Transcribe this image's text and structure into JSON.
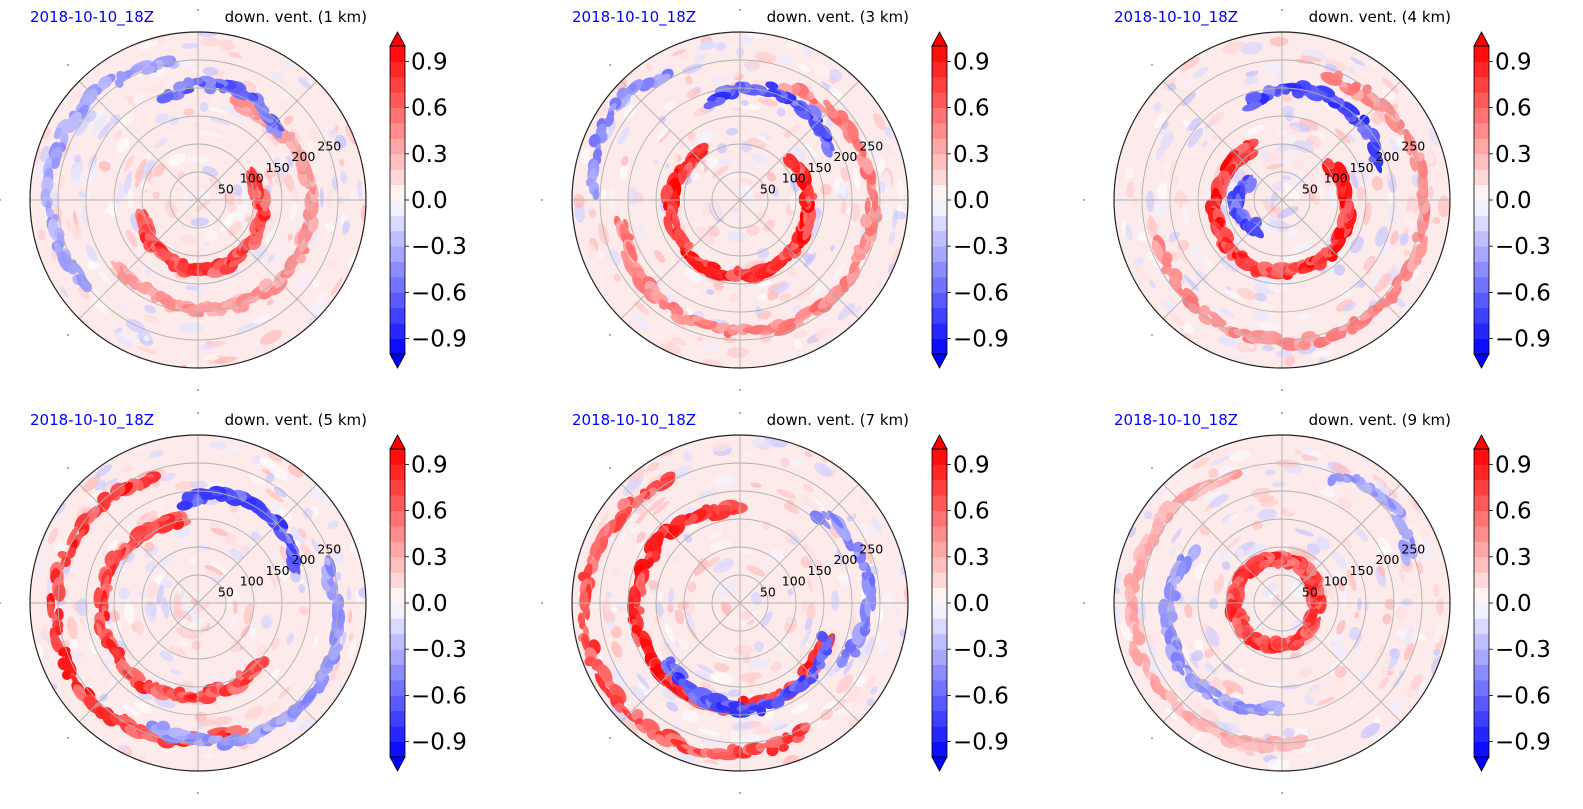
{
  "chart_data": [
    {
      "type": "heatmap",
      "projection": "polar",
      "date_label": "2018-10-10_18Z",
      "title": "down. vent. (1 km)",
      "radial_ticks": [
        "50",
        "100",
        "150",
        "200",
        "250"
      ],
      "colorbar": {
        "ticks": [
          "0.9",
          "0.6",
          "0.3",
          "0.0",
          "−0.3",
          "−0.6",
          "−0.9"
        ],
        "tick_values": [
          0.9,
          0.6,
          0.3,
          0.0,
          -0.3,
          -0.6,
          -0.9
        ],
        "range": [
          -1.0,
          1.0
        ],
        "extend": "both",
        "colormap": "bwr"
      },
      "rings": [
        {
          "start": 195,
          "span": 190,
          "r": 0.34,
          "sign": 1,
          "amp": 0.9
        },
        {
          "start": 220,
          "span": 210,
          "r": 0.6,
          "sign": 1,
          "amp": 0.5
        },
        {
          "start": 40,
          "span": 70,
          "r": 0.62,
          "sign": -1,
          "amp": 0.75
        },
        {
          "start": 100,
          "span": 120,
          "r": 0.82,
          "sign": -1,
          "amp": 0.45
        }
      ]
    },
    {
      "type": "heatmap",
      "projection": "polar",
      "date_label": "2018-10-10_18Z",
      "title": "down. vent. (3 km)",
      "radial_ticks": [
        "50",
        "100",
        "150",
        "200",
        "250"
      ],
      "colorbar": {
        "ticks": [
          "0.9",
          "0.6",
          "0.3",
          "0.0",
          "−0.3",
          "−0.6",
          "−0.9"
        ],
        "tick_values": [
          0.9,
          0.6,
          0.3,
          0.0,
          -0.3,
          -0.6,
          -0.9
        ],
        "range": [
          -1.0,
          1.0
        ],
        "extend": "both",
        "colormap": "bwr"
      },
      "rings": [
        {
          "start": 130,
          "span": 270,
          "r": 0.37,
          "sign": 1,
          "amp": 1.0
        },
        {
          "start": 190,
          "span": 240,
          "r": 0.72,
          "sign": 1,
          "amp": 0.6
        },
        {
          "start": 30,
          "span": 80,
          "r": 0.6,
          "sign": -1,
          "amp": 0.85
        },
        {
          "start": 120,
          "span": 60,
          "r": 0.85,
          "sign": -1,
          "amp": 0.55
        }
      ]
    },
    {
      "type": "heatmap",
      "projection": "polar",
      "date_label": "2018-10-10_18Z",
      "title": "down. vent. (4 km)",
      "radial_ticks": [
        "50",
        "100",
        "150",
        "200",
        "250"
      ],
      "colorbar": {
        "ticks": [
          "0.9",
          "0.6",
          "0.3",
          "0.0",
          "−0.3",
          "−0.6",
          "−0.9"
        ],
        "tick_values": [
          0.9,
          0.6,
          0.3,
          0.0,
          -0.3,
          -0.6,
          -0.9
        ],
        "range": [
          -1.0,
          1.0
        ],
        "extend": "both",
        "colormap": "bwr"
      },
      "rings": [
        {
          "start": 120,
          "span": 280,
          "r": 0.35,
          "sign": 1,
          "amp": 1.0
        },
        {
          "start": 200,
          "span": 230,
          "r": 0.78,
          "sign": 1,
          "amp": 0.55
        },
        {
          "start": 20,
          "span": 90,
          "r": 0.6,
          "sign": -1,
          "amp": 0.85
        },
        {
          "start": 150,
          "span": 80,
          "r": 0.2,
          "sign": -1,
          "amp": 0.8
        }
      ]
    },
    {
      "type": "heatmap",
      "projection": "polar",
      "date_label": "2018-10-10_18Z",
      "title": "down. vent. (5 km)",
      "radial_ticks": [
        "50",
        "100",
        "150",
        "200",
        "250"
      ],
      "colorbar": {
        "ticks": [
          "0.9",
          "0.6",
          "0.3",
          "0.0",
          "−0.3",
          "−0.6",
          "−0.9"
        ],
        "tick_values": [
          0.9,
          0.6,
          0.3,
          0.0,
          -0.3,
          -0.6,
          -0.9
        ],
        "range": [
          -1.0,
          1.0
        ],
        "extend": "both",
        "colormap": "bwr"
      },
      "rings": [
        {
          "start": 100,
          "span": 220,
          "r": 0.5,
          "sign": 1,
          "amp": 0.9
        },
        {
          "start": 110,
          "span": 180,
          "r": 0.78,
          "sign": 1,
          "amp": 0.95
        },
        {
          "start": 250,
          "span": 130,
          "r": 0.78,
          "sign": -1,
          "amp": 0.5
        },
        {
          "start": 20,
          "span": 80,
          "r": 0.6,
          "sign": -1,
          "amp": 0.85
        }
      ]
    },
    {
      "type": "heatmap",
      "projection": "polar",
      "date_label": "2018-10-10_18Z",
      "title": "down. vent. (7 km)",
      "radial_ticks": [
        "50",
        "100",
        "150",
        "200",
        "250"
      ],
      "colorbar": {
        "ticks": [
          "0.9",
          "0.6",
          "0.3",
          "0.0",
          "−0.3",
          "−0.6",
          "−0.9"
        ],
        "tick_values": [
          0.9,
          0.6,
          0.3,
          0.0,
          -0.3,
          -0.6,
          -0.9
        ],
        "range": [
          -1.0,
          1.0
        ],
        "extend": "both",
        "colormap": "bwr"
      },
      "rings": [
        {
          "start": 90,
          "span": 250,
          "r": 0.55,
          "sign": 1,
          "amp": 1.0
        },
        {
          "start": 120,
          "span": 180,
          "r": 0.85,
          "sign": 1,
          "amp": 0.85
        },
        {
          "start": 220,
          "span": 120,
          "r": 0.55,
          "sign": -1,
          "amp": 0.85
        },
        {
          "start": 330,
          "span": 80,
          "r": 0.7,
          "sign": -1,
          "amp": 0.6
        }
      ]
    },
    {
      "type": "heatmap",
      "projection": "polar",
      "date_label": "2018-10-10_18Z",
      "title": "down. vent. (9 km)",
      "radial_ticks": [
        "50",
        "100",
        "150",
        "200",
        "250"
      ],
      "colorbar": {
        "ticks": [
          "0.9",
          "0.6",
          "0.3",
          "0.0",
          "−0.3",
          "−0.6",
          "−0.9"
        ],
        "tick_values": [
          0.9,
          0.6,
          0.3,
          0.0,
          -0.3,
          -0.6,
          -0.9
        ],
        "range": [
          -1.0,
          1.0
        ],
        "extend": "both",
        "colormap": "bwr"
      },
      "rings": [
        {
          "start": 0,
          "span": 340,
          "r": 0.2,
          "sign": 1,
          "amp": 0.9
        },
        {
          "start": 110,
          "span": 170,
          "r": 0.82,
          "sign": 1,
          "amp": 0.4
        },
        {
          "start": 150,
          "span": 120,
          "r": 0.62,
          "sign": -1,
          "amp": 0.5
        },
        {
          "start": 20,
          "span": 50,
          "r": 0.8,
          "sign": -1,
          "amp": 0.5
        }
      ]
    }
  ],
  "colors": {
    "positive": "#ff0000",
    "negative": "#0000ff",
    "zero": "#ffffff",
    "date": "#0000ff",
    "grid": "#b0b0b0"
  }
}
